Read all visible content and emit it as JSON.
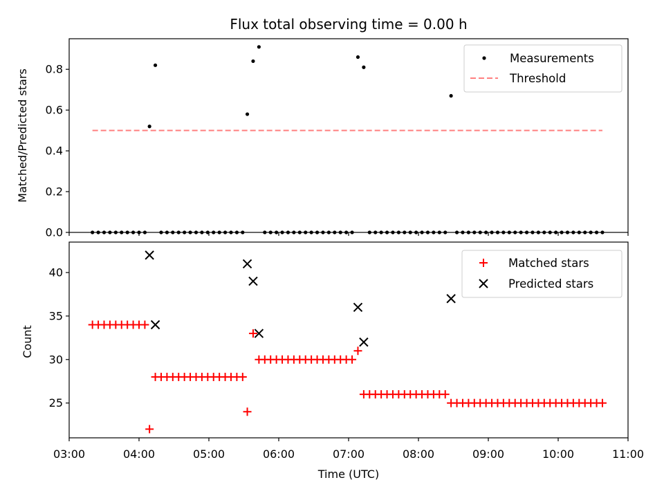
{
  "chart_data": [
    {
      "type": "scatter",
      "title": "Flux total observing time = 0.00 h",
      "xlabel": "",
      "ylabel": "Matched/Predicted stars",
      "xlim": [
        "03:00",
        "11:00"
      ],
      "ylim": [
        0,
        0.95
      ],
      "yticks": [
        "0.0",
        "0.2",
        "0.4",
        "0.6",
        "0.8"
      ],
      "ytick_values": [
        0,
        0.2,
        0.4,
        0.6,
        0.8
      ],
      "legend": {
        "position": "upper right",
        "entries": [
          "Measurements",
          "Threshold"
        ]
      },
      "series": [
        {
          "name": "Measurements",
          "marker": "dot",
          "color": "#000000",
          "points": [
            [
              "03:20",
              0
            ],
            [
              "03:25",
              0
            ],
            [
              "03:30",
              0
            ],
            [
              "03:35",
              0
            ],
            [
              "03:40",
              0
            ],
            [
              "03:45",
              0
            ],
            [
              "03:50",
              0
            ],
            [
              "03:55",
              0
            ],
            [
              "04:00",
              0
            ],
            [
              "04:05",
              0
            ],
            [
              "04:09",
              0.52
            ],
            [
              "04:14",
              0.82
            ],
            [
              "04:19",
              0
            ],
            [
              "04:24",
              0
            ],
            [
              "04:29",
              0
            ],
            [
              "04:34",
              0
            ],
            [
              "04:39",
              0
            ],
            [
              "04:44",
              0
            ],
            [
              "04:49",
              0
            ],
            [
              "04:54",
              0
            ],
            [
              "04:59",
              0
            ],
            [
              "05:04",
              0
            ],
            [
              "05:09",
              0
            ],
            [
              "05:14",
              0
            ],
            [
              "05:19",
              0
            ],
            [
              "05:24",
              0
            ],
            [
              "05:29",
              0
            ],
            [
              "05:33",
              0.58
            ],
            [
              "05:38",
              0.84
            ],
            [
              "05:43",
              0.91
            ],
            [
              "05:48",
              0
            ],
            [
              "05:53",
              0
            ],
            [
              "05:58",
              0
            ],
            [
              "06:03",
              0
            ],
            [
              "06:08",
              0
            ],
            [
              "06:13",
              0
            ],
            [
              "06:18",
              0
            ],
            [
              "06:23",
              0
            ],
            [
              "06:28",
              0
            ],
            [
              "06:33",
              0
            ],
            [
              "06:38",
              0
            ],
            [
              "06:43",
              0
            ],
            [
              "06:48",
              0
            ],
            [
              "06:53",
              0
            ],
            [
              "06:58",
              0
            ],
            [
              "07:03",
              0
            ],
            [
              "07:08",
              0.86
            ],
            [
              "07:13",
              0.81
            ],
            [
              "07:18",
              0
            ],
            [
              "07:23",
              0
            ],
            [
              "07:28",
              0
            ],
            [
              "07:33",
              0
            ],
            [
              "07:38",
              0
            ],
            [
              "07:43",
              0
            ],
            [
              "07:48",
              0
            ],
            [
              "07:53",
              0
            ],
            [
              "07:58",
              0
            ],
            [
              "08:03",
              0
            ],
            [
              "08:08",
              0
            ],
            [
              "08:13",
              0
            ],
            [
              "08:18",
              0
            ],
            [
              "08:23",
              0
            ],
            [
              "08:28",
              0.67
            ],
            [
              "08:33",
              0
            ],
            [
              "08:38",
              0
            ],
            [
              "08:43",
              0
            ],
            [
              "08:48",
              0
            ],
            [
              "08:53",
              0
            ],
            [
              "08:58",
              0
            ],
            [
              "09:03",
              0
            ],
            [
              "09:08",
              0
            ],
            [
              "09:13",
              0
            ],
            [
              "09:18",
              0
            ],
            [
              "09:23",
              0
            ],
            [
              "09:28",
              0
            ],
            [
              "09:33",
              0
            ],
            [
              "09:38",
              0
            ],
            [
              "09:43",
              0
            ],
            [
              "09:48",
              0
            ],
            [
              "09:53",
              0
            ],
            [
              "09:58",
              0
            ],
            [
              "10:03",
              0
            ],
            [
              "10:08",
              0
            ],
            [
              "10:13",
              0
            ],
            [
              "10:18",
              0
            ],
            [
              "10:23",
              0
            ],
            [
              "10:28",
              0
            ],
            [
              "10:33",
              0
            ],
            [
              "10:38",
              0
            ]
          ]
        },
        {
          "name": "Threshold",
          "marker": "dashed-line",
          "color": "#ff7f7f",
          "points": [
            [
              "03:20",
              0.5
            ],
            [
              "10:38",
              0.5
            ]
          ]
        }
      ]
    },
    {
      "type": "scatter",
      "title": "",
      "xlabel": "Time (UTC)",
      "ylabel": "Count",
      "xlim": [
        "03:00",
        "11:00"
      ],
      "ylim": [
        21,
        43.5
      ],
      "xticks": [
        "03:00",
        "04:00",
        "05:00",
        "06:00",
        "07:00",
        "08:00",
        "09:00",
        "10:00",
        "11:00"
      ],
      "yticks": [
        "25",
        "30",
        "35",
        "40"
      ],
      "ytick_values": [
        25,
        30,
        35,
        40
      ],
      "legend": {
        "position": "upper right",
        "entries": [
          "Matched stars",
          "Predicted stars"
        ]
      },
      "series": [
        {
          "name": "Matched stars",
          "marker": "plus",
          "color": "#ff0000",
          "points": [
            [
              "03:20",
              34
            ],
            [
              "03:25",
              34
            ],
            [
              "03:30",
              34
            ],
            [
              "03:35",
              34
            ],
            [
              "03:40",
              34
            ],
            [
              "03:45",
              34
            ],
            [
              "03:50",
              34
            ],
            [
              "03:55",
              34
            ],
            [
              "04:00",
              34
            ],
            [
              "04:05",
              34
            ],
            [
              "04:09",
              22
            ],
            [
              "04:14",
              28
            ],
            [
              "04:19",
              28
            ],
            [
              "04:24",
              28
            ],
            [
              "04:29",
              28
            ],
            [
              "04:34",
              28
            ],
            [
              "04:39",
              28
            ],
            [
              "04:44",
              28
            ],
            [
              "04:49",
              28
            ],
            [
              "04:54",
              28
            ],
            [
              "04:59",
              28
            ],
            [
              "05:04",
              28
            ],
            [
              "05:09",
              28
            ],
            [
              "05:14",
              28
            ],
            [
              "05:19",
              28
            ],
            [
              "05:24",
              28
            ],
            [
              "05:29",
              28
            ],
            [
              "05:33",
              24
            ],
            [
              "05:38",
              33
            ],
            [
              "05:43",
              30
            ],
            [
              "05:48",
              30
            ],
            [
              "05:53",
              30
            ],
            [
              "05:58",
              30
            ],
            [
              "06:03",
              30
            ],
            [
              "06:08",
              30
            ],
            [
              "06:13",
              30
            ],
            [
              "06:18",
              30
            ],
            [
              "06:23",
              30
            ],
            [
              "06:28",
              30
            ],
            [
              "06:33",
              30
            ],
            [
              "06:38",
              30
            ],
            [
              "06:43",
              30
            ],
            [
              "06:48",
              30
            ],
            [
              "06:53",
              30
            ],
            [
              "06:58",
              30
            ],
            [
              "07:03",
              30
            ],
            [
              "07:08",
              31
            ],
            [
              "07:13",
              26
            ],
            [
              "07:18",
              26
            ],
            [
              "07:23",
              26
            ],
            [
              "07:28",
              26
            ],
            [
              "07:33",
              26
            ],
            [
              "07:38",
              26
            ],
            [
              "07:43",
              26
            ],
            [
              "07:48",
              26
            ],
            [
              "07:53",
              26
            ],
            [
              "07:58",
              26
            ],
            [
              "08:03",
              26
            ],
            [
              "08:08",
              26
            ],
            [
              "08:13",
              26
            ],
            [
              "08:18",
              26
            ],
            [
              "08:23",
              26
            ],
            [
              "08:28",
              25
            ],
            [
              "08:33",
              25
            ],
            [
              "08:38",
              25
            ],
            [
              "08:43",
              25
            ],
            [
              "08:48",
              25
            ],
            [
              "08:53",
              25
            ],
            [
              "08:58",
              25
            ],
            [
              "09:03",
              25
            ],
            [
              "09:08",
              25
            ],
            [
              "09:13",
              25
            ],
            [
              "09:18",
              25
            ],
            [
              "09:23",
              25
            ],
            [
              "09:28",
              25
            ],
            [
              "09:33",
              25
            ],
            [
              "09:38",
              25
            ],
            [
              "09:43",
              25
            ],
            [
              "09:48",
              25
            ],
            [
              "09:53",
              25
            ],
            [
              "09:58",
              25
            ],
            [
              "10:03",
              25
            ],
            [
              "10:08",
              25
            ],
            [
              "10:13",
              25
            ],
            [
              "10:18",
              25
            ],
            [
              "10:23",
              25
            ],
            [
              "10:28",
              25
            ],
            [
              "10:33",
              25
            ],
            [
              "10:38",
              25
            ]
          ]
        },
        {
          "name": "Predicted stars",
          "marker": "x",
          "color": "#000000",
          "points": [
            [
              "04:09",
              42
            ],
            [
              "04:14",
              34
            ],
            [
              "05:33",
              41
            ],
            [
              "05:38",
              39
            ],
            [
              "05:43",
              33
            ],
            [
              "07:08",
              36
            ],
            [
              "07:13",
              32
            ],
            [
              "08:28",
              37
            ]
          ]
        }
      ]
    }
  ]
}
